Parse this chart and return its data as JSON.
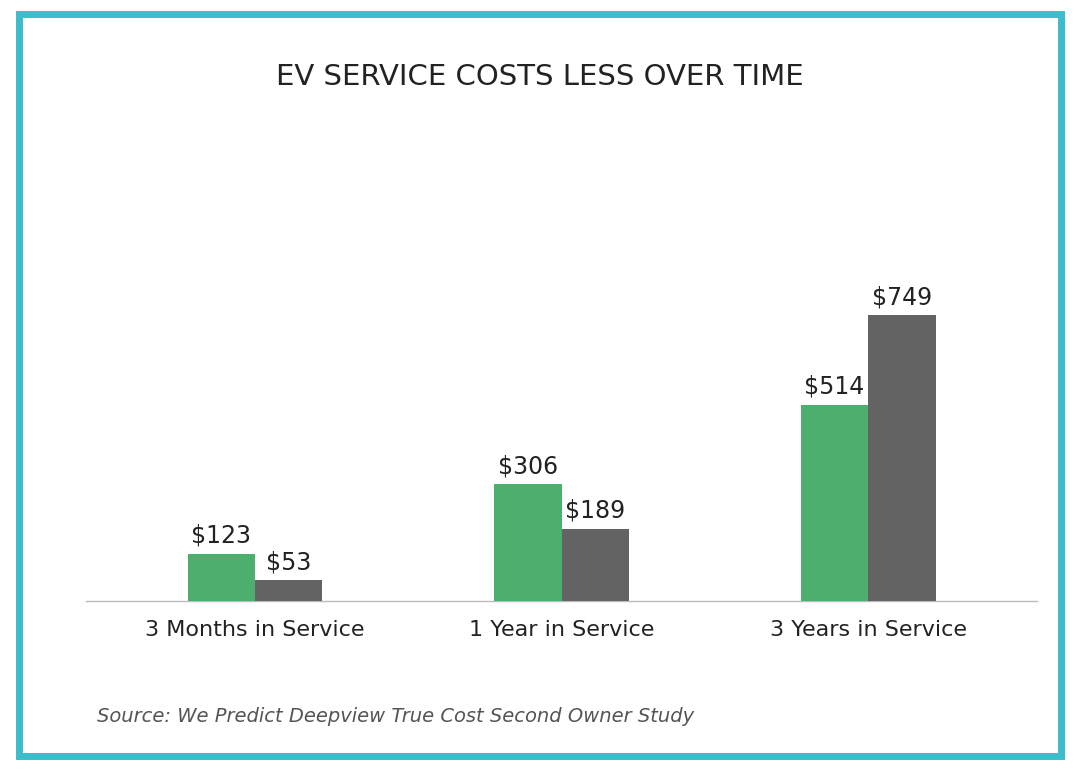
{
  "title": "EV SERVICE COSTS LESS OVER TIME",
  "categories": [
    "3 Months in Service",
    "1 Year in Service",
    "3 Years in Service"
  ],
  "ev_values": [
    123,
    306,
    514
  ],
  "gas_values": [
    53,
    189,
    749
  ],
  "ev_color": "#4caf6e",
  "gas_color": "#636363",
  "source_text": "Source: We Predict Deepview True Cost Second Owner Study",
  "title_fontsize": 21,
  "label_fontsize": 16,
  "value_fontsize": 17,
  "source_fontsize": 14,
  "legend_fontsize": 16,
  "background_color": "#ffffff",
  "border_color": "#3bbdcc",
  "bar_width": 0.22,
  "ylim": [
    0,
    1050
  ]
}
